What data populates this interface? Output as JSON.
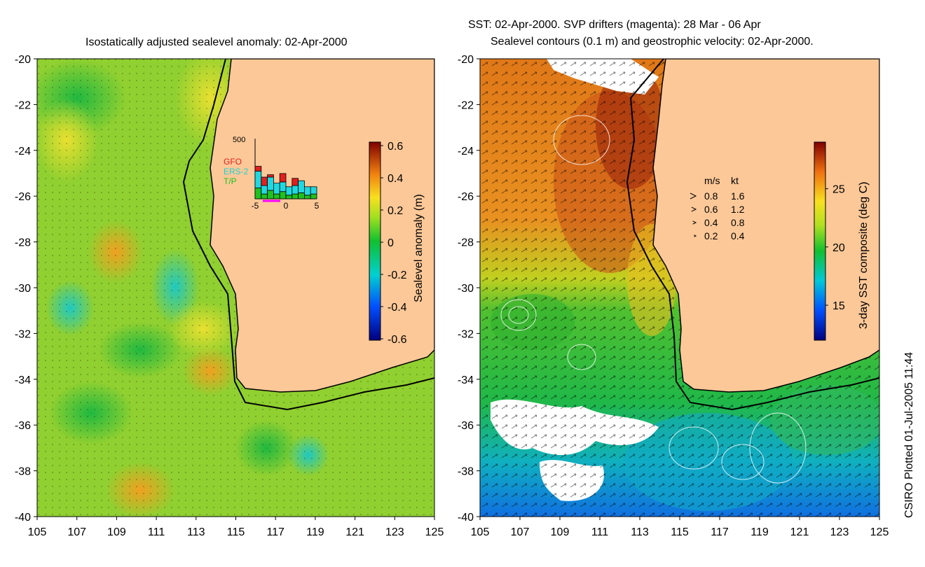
{
  "left_panel": {
    "title": "Isostatically adjusted sealevel anomaly: 02-Apr-2000",
    "lat_ticks": [
      "-20",
      "-22",
      "-24",
      "-26",
      "-28",
      "-30",
      "-32",
      "-34",
      "-36",
      "-38",
      "-40"
    ],
    "lon_ticks": [
      "105",
      "107",
      "109",
      "111",
      "113",
      "115",
      "117",
      "119",
      "121",
      "123",
      "125"
    ],
    "colorbar": {
      "label": "Sealevel anomaly (m)",
      "ticks": [
        "0.6",
        "0.4",
        "0.2",
        "0",
        "-0.2",
        "-0.4",
        "-0.6"
      ]
    },
    "inset": {
      "ymax_label": "500",
      "x_ticks": [
        "-5",
        "0",
        "5"
      ],
      "legend": [
        {
          "name": "GFO",
          "color": "#e02020"
        },
        {
          "name": "ERS-2",
          "color": "#20d0d0"
        },
        {
          "name": "T/P",
          "color": "#20c020"
        }
      ],
      "bars": [
        {
          "day": -5,
          "tp": 90,
          "ers": 140,
          "gfo": 40
        },
        {
          "day": -4,
          "tp": 40,
          "ers": 70,
          "gfo": 70
        },
        {
          "day": -3,
          "tp": 70,
          "ers": 110,
          "gfo": 20
        },
        {
          "day": -2,
          "tp": 40,
          "ers": 90,
          "gfo": 0
        },
        {
          "day": -1,
          "tp": 60,
          "ers": 80,
          "gfo": 70
        },
        {
          "day": 0,
          "tp": 30,
          "ers": 70,
          "gfo": 0
        },
        {
          "day": 1,
          "tp": 40,
          "ers": 70,
          "gfo": 60
        },
        {
          "day": 2,
          "tp": 50,
          "ers": 100,
          "gfo": 0
        },
        {
          "day": 3,
          "tp": 30,
          "ers": 70,
          "gfo": 0
        },
        {
          "day": 4,
          "tp": 40,
          "ers": 60,
          "gfo": 0
        }
      ]
    }
  },
  "right_panel": {
    "title_line1": "SST: 02-Apr-2000. SVP drifters (magenta): 28 Mar - 06 Apr",
    "title_line2": "Sealevel contours (0.1 m) and geostrophic velocity: 02-Apr-2000.",
    "lat_ticks": [
      "-20",
      "-22",
      "-24",
      "-26",
      "-28",
      "-30",
      "-32",
      "-34",
      "-36",
      "-38",
      "-40"
    ],
    "lon_ticks": [
      "105",
      "107",
      "109",
      "111",
      "113",
      "115",
      "117",
      "119",
      "121",
      "123",
      "125"
    ],
    "colorbar": {
      "label": "3-day SST composite (deg C)",
      "ticks": [
        "25",
        "20",
        "15"
      ]
    },
    "velocity_legend": {
      "header_ms": "m/s",
      "header_kt": "kt",
      "rows": [
        {
          "ms": "0.8",
          "kt": "1.6"
        },
        {
          "ms": "0.6",
          "kt": "1.2"
        },
        {
          "ms": "0.4",
          "kt": "0.8"
        },
        {
          "ms": "0.2",
          "kt": "0.4"
        }
      ]
    }
  },
  "credit": "CSIRO Plotted 01-Jul-2005 11:44",
  "colors": {
    "land": "#fcc898",
    "coast": "#000000"
  }
}
